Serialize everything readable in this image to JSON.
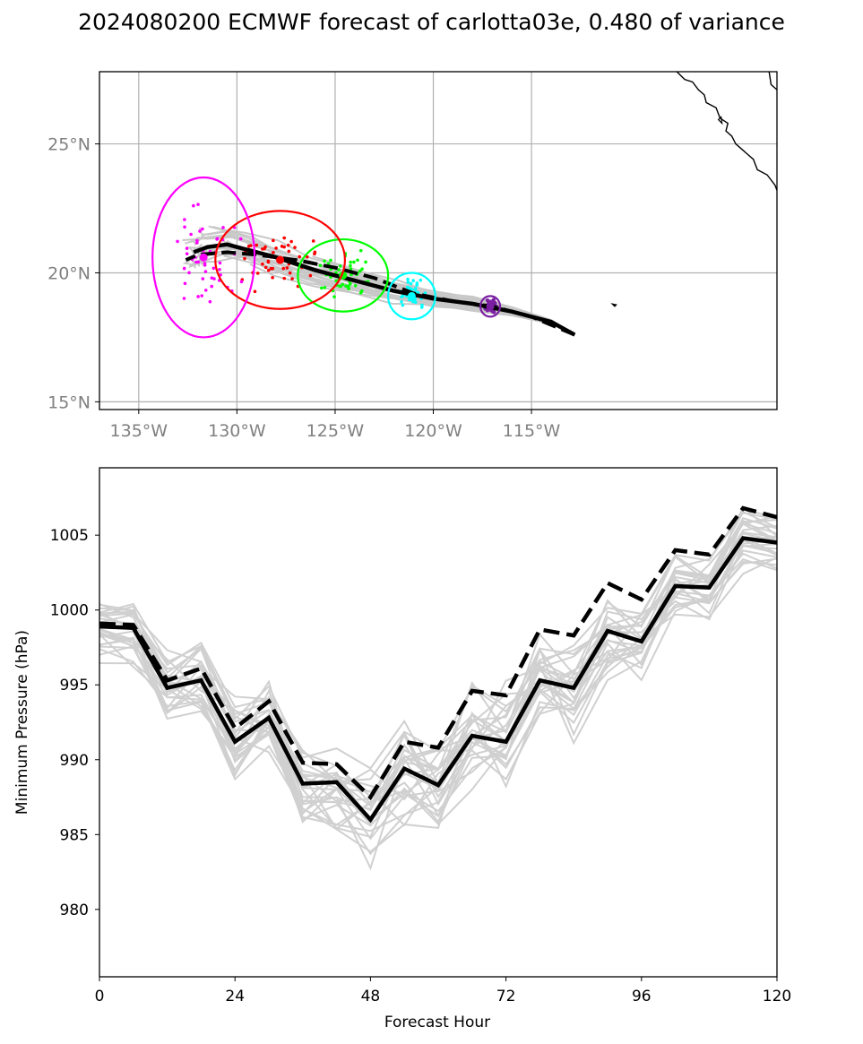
{
  "title": "2024080200 ECMWF forecast of carlotta03e, 0.480 of variance",
  "chart_data": [
    {
      "type": "map",
      "lon_range": [
        -137.0,
        -102.5
      ],
      "lat_range": [
        14.7,
        27.8
      ],
      "x_ticks": [
        -135,
        -130,
        -125,
        -120,
        -115
      ],
      "x_tick_labels": [
        "135°W",
        "130°W",
        "125°W",
        "120°W",
        "115°W"
      ],
      "y_ticks": [
        15,
        20,
        25
      ],
      "y_tick_labels": [
        "15°N",
        "20°N",
        "25°N"
      ],
      "grid": true,
      "mean_track": [
        [
          -112.8,
          17.6
        ],
        [
          -114.0,
          18.1
        ],
        [
          -116.0,
          18.5
        ],
        [
          -118.0,
          18.8
        ],
        [
          -120.0,
          19.0
        ],
        [
          -122.0,
          19.3
        ],
        [
          -124.0,
          19.7
        ],
        [
          -126.0,
          20.1
        ],
        [
          -128.0,
          20.6
        ],
        [
          -129.5,
          20.9
        ],
        [
          -130.5,
          21.1
        ],
        [
          -131.5,
          21.0
        ],
        [
          -132.2,
          20.8
        ]
      ],
      "dashed_track": [
        [
          -112.8,
          17.6
        ],
        [
          -115.0,
          18.3
        ],
        [
          -117.0,
          18.7
        ],
        [
          -119.0,
          18.9
        ],
        [
          -121.0,
          19.2
        ],
        [
          -123.0,
          19.8
        ],
        [
          -125.0,
          20.2
        ],
        [
          -127.0,
          20.5
        ],
        [
          -129.0,
          20.7
        ],
        [
          -130.5,
          20.8
        ],
        [
          -132.0,
          20.7
        ],
        [
          -132.6,
          20.5
        ]
      ],
      "ellipses": [
        {
          "color": "#7b1fa2",
          "center": [
            -117.1,
            18.7
          ],
          "rx": 0.5,
          "ry": 0.4
        },
        {
          "color": "#00ffff",
          "center": [
            -121.1,
            19.1
          ],
          "rx": 1.2,
          "ry": 0.9
        },
        {
          "color": "#00ff00",
          "center": [
            -124.6,
            19.9
          ],
          "rx": 2.3,
          "ry": 1.4
        },
        {
          "color": "#ff0000",
          "center": [
            -127.8,
            20.5
          ],
          "rx": 3.3,
          "ry": 1.9
        },
        {
          "color": "#ff00ff",
          "center": [
            -131.7,
            20.6
          ],
          "rx": 2.6,
          "ry": 3.1
        }
      ]
    },
    {
      "type": "line",
      "xlabel": "Forecast Hour",
      "ylabel": "Minimum Pressure (hPa)",
      "xlim": [
        0,
        120
      ],
      "ylim": [
        975.5,
        1009.5
      ],
      "x_ticks": [
        0,
        24,
        48,
        72,
        96,
        120
      ],
      "y_ticks": [
        980,
        985,
        990,
        995,
        1000,
        1005
      ],
      "x": [
        0,
        6,
        12,
        18,
        24,
        30,
        36,
        42,
        48,
        54,
        60,
        66,
        72,
        78,
        84,
        90,
        96,
        102,
        108,
        114,
        120
      ],
      "series": [
        {
          "style": "solid-bold",
          "values": [
            998.9,
            998.8,
            994.8,
            995.3,
            991.2,
            992.8,
            988.4,
            988.5,
            986.0,
            989.4,
            988.3,
            991.6,
            991.2,
            995.3,
            994.8,
            998.6,
            997.9,
            1001.6,
            1001.5,
            1004.8,
            1004.5
          ]
        },
        {
          "style": "dashed-bold",
          "values": [
            999.1,
            999.0,
            995.3,
            996.1,
            992.1,
            993.9,
            989.8,
            989.7,
            987.5,
            991.2,
            990.8,
            994.6,
            994.3,
            998.7,
            998.3,
            1001.8,
            1000.7,
            1004.0,
            1003.7,
            1006.8,
            1006.2
          ]
        }
      ]
    }
  ]
}
